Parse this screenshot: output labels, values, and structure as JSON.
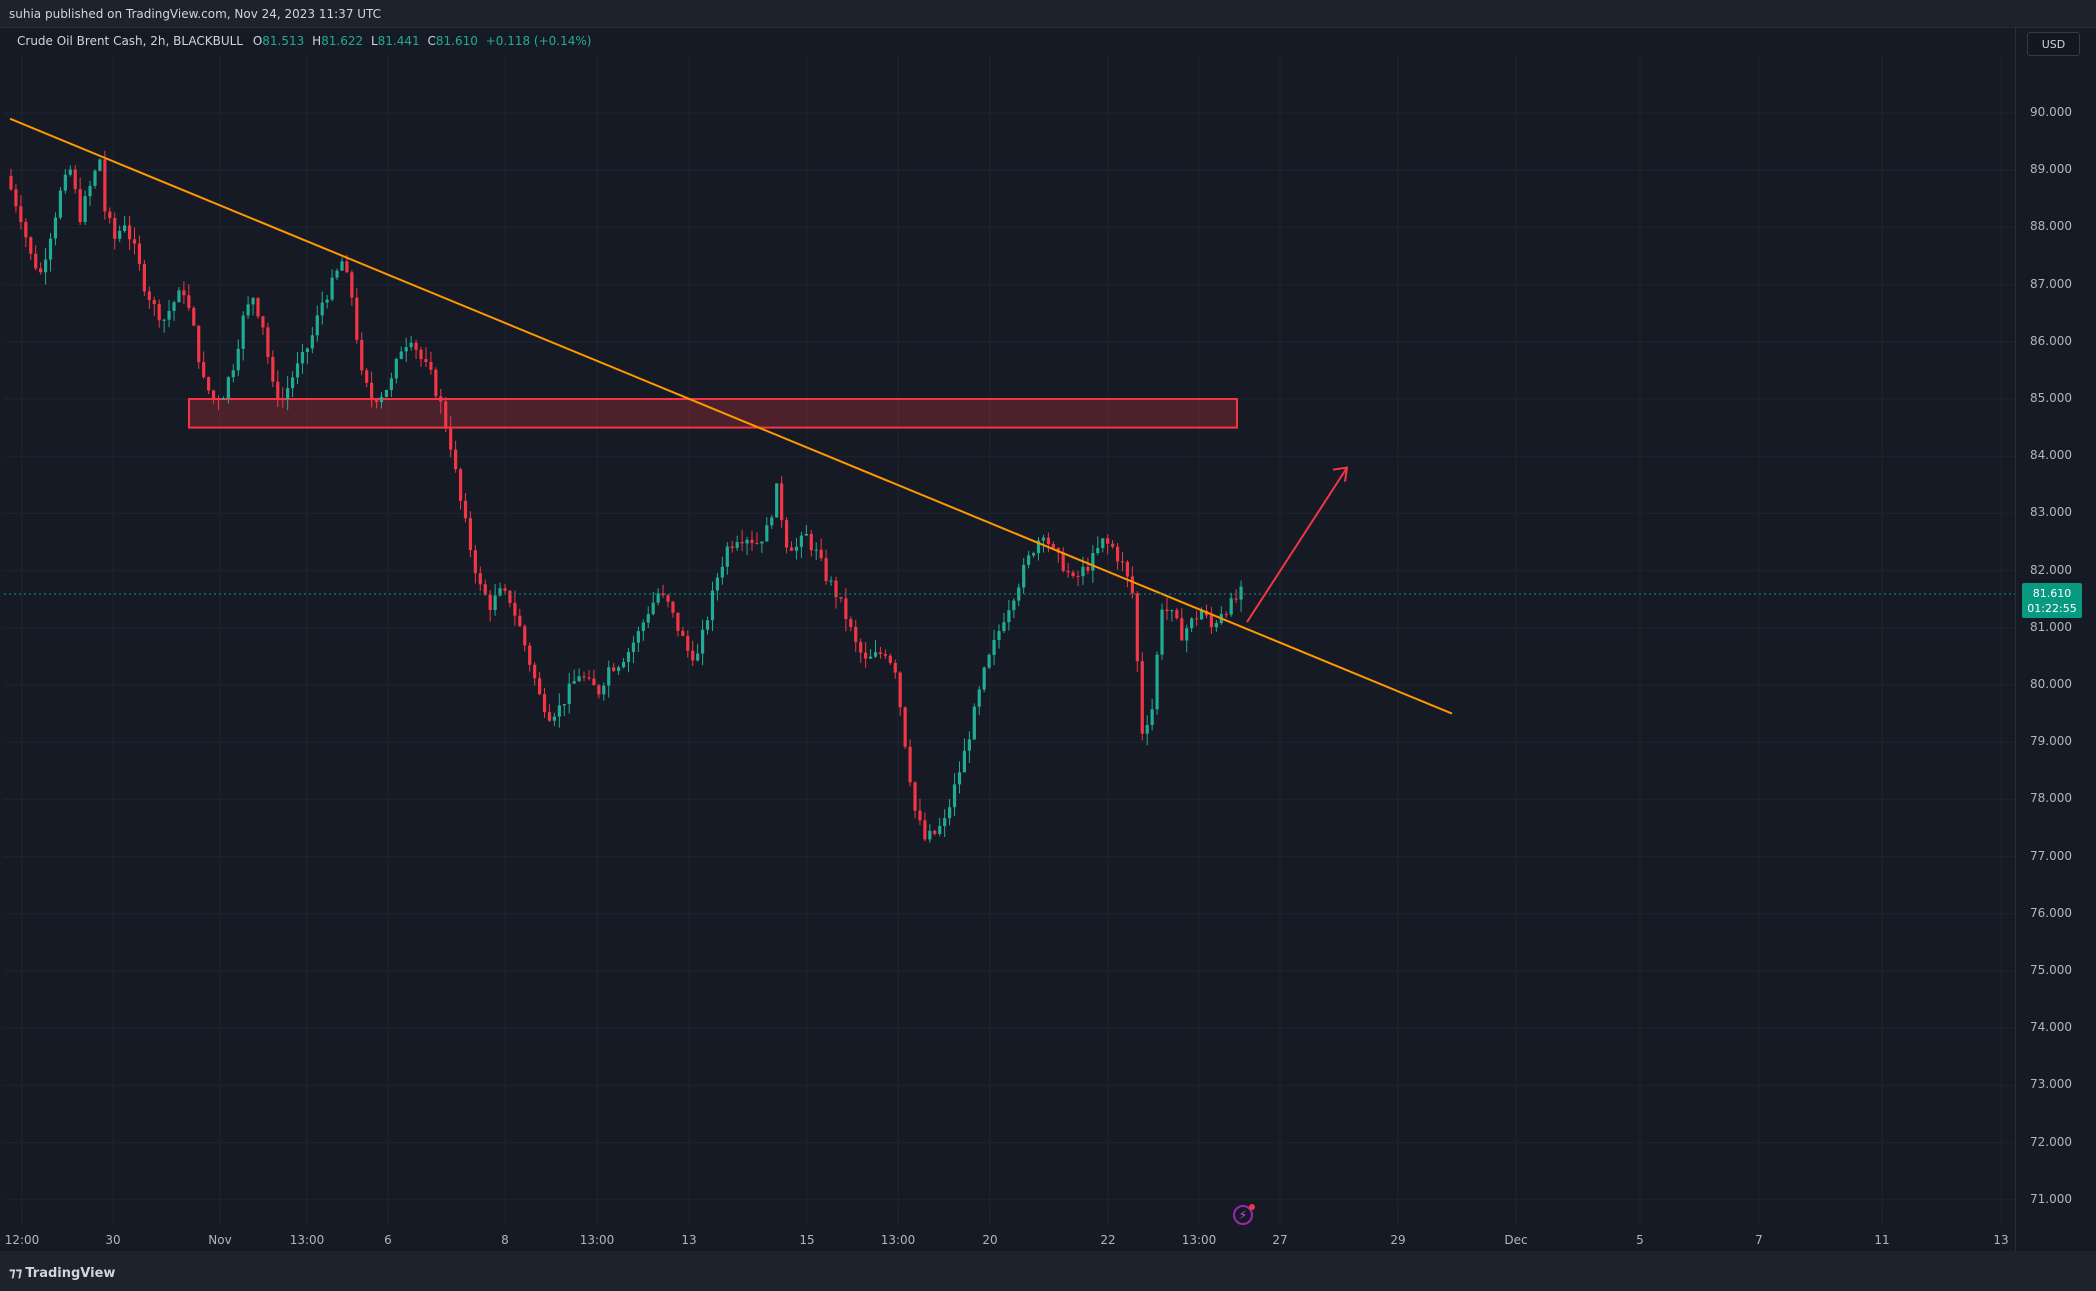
{
  "header": {
    "published": "suhia published on TradingView.com, Nov 24, 2023 11:37 UTC"
  },
  "legend": {
    "symbol": "Crude Oil Brent Cash, 2h, BLACKBULL",
    "o_label": "O",
    "o_val": "81.513",
    "h_label": "H",
    "h_val": "81.622",
    "l_label": "L",
    "l_val": "81.441",
    "c_label": "C",
    "c_val": "81.610",
    "change": "+0.118 (+0.14%)"
  },
  "currency": "USD",
  "price_axis": [
    "90.000",
    "89.000",
    "88.000",
    "87.000",
    "86.000",
    "85.000",
    "84.000",
    "83.000",
    "82.000",
    "81.000",
    "80.000",
    "79.000",
    "78.000",
    "77.000",
    "76.000",
    "75.000",
    "74.000",
    "73.000",
    "72.000",
    "71.000"
  ],
  "current_price": {
    "price": "81.610",
    "countdown": "01:22:55"
  },
  "time_axis": [
    "12:00",
    "30",
    "Nov",
    "13:00",
    "6",
    "8",
    "13:00",
    "13",
    "15",
    "13:00",
    "20",
    "22",
    "13:00",
    "27",
    "29",
    "Dec",
    "5",
    "7",
    "11",
    "13"
  ],
  "footer": {
    "brand": "TradingView"
  },
  "colors": {
    "up": "#22ab94",
    "down": "#f23645",
    "trendline": "#ff9800",
    "zone": "#f23645",
    "arrow": "#f23645"
  },
  "chart_data": {
    "type": "candlestick",
    "title": "Crude Oil Brent Cash, 2h, BLACKBULL",
    "ylim": [
      70.5,
      91.2
    ],
    "price_path": [
      [
        0,
        88.9
      ],
      [
        6,
        88.2
      ],
      [
        10,
        87.5
      ],
      [
        14,
        87.2
      ],
      [
        18,
        87.9
      ],
      [
        22,
        88.6
      ],
      [
        26,
        89.0
      ],
      [
        30,
        88.2
      ],
      [
        34,
        88.7
      ],
      [
        38,
        89.2
      ],
      [
        40,
        88.3
      ],
      [
        44,
        87.8
      ],
      [
        48,
        88.1
      ],
      [
        52,
        87.6
      ],
      [
        56,
        87.0
      ],
      [
        60,
        86.6
      ],
      [
        64,
        86.4
      ],
      [
        68,
        86.7
      ],
      [
        72,
        86.9
      ],
      [
        76,
        86.2
      ],
      [
        80,
        85.3
      ],
      [
        84,
        85.0
      ],
      [
        88,
        85.1
      ],
      [
        92,
        85.6
      ],
      [
        96,
        86.4
      ],
      [
        100,
        86.8
      ],
      [
        104,
        86.3
      ],
      [
        108,
        85.2
      ],
      [
        112,
        85.0
      ],
      [
        116,
        85.4
      ],
      [
        120,
        85.7
      ],
      [
        124,
        86.1
      ],
      [
        128,
        86.7
      ],
      [
        132,
        87.0
      ],
      [
        136,
        87.4
      ],
      [
        140,
        86.8
      ],
      [
        144,
        85.4
      ],
      [
        148,
        85.0
      ],
      [
        152,
        85.1
      ],
      [
        156,
        85.3
      ],
      [
        160,
        85.9
      ],
      [
        164,
        86.1
      ],
      [
        168,
        85.7
      ],
      [
        172,
        85.4
      ],
      [
        176,
        84.9
      ],
      [
        180,
        84.2
      ],
      [
        184,
        83.2
      ],
      [
        188,
        82.4
      ],
      [
        192,
        81.7
      ],
      [
        196,
        81.4
      ],
      [
        200,
        81.6
      ],
      [
        204,
        81.5
      ],
      [
        208,
        81.0
      ],
      [
        212,
        80.4
      ],
      [
        216,
        79.8
      ],
      [
        220,
        79.5
      ],
      [
        224,
        79.6
      ],
      [
        228,
        79.9
      ],
      [
        232,
        80.2
      ],
      [
        236,
        80.0
      ],
      [
        240,
        79.9
      ],
      [
        244,
        80.3
      ],
      [
        248,
        80.4
      ],
      [
        252,
        80.6
      ],
      [
        256,
        80.9
      ],
      [
        260,
        81.3
      ],
      [
        264,
        81.6
      ],
      [
        268,
        81.4
      ],
      [
        272,
        81.0
      ],
      [
        276,
        80.6
      ],
      [
        280,
        80.5
      ],
      [
        284,
        81.2
      ],
      [
        288,
        81.9
      ],
      [
        292,
        82.4
      ],
      [
        296,
        82.6
      ],
      [
        300,
        82.6
      ],
      [
        304,
        82.5
      ],
      [
        308,
        82.7
      ],
      [
        312,
        83.4
      ],
      [
        316,
        82.5
      ],
      [
        320,
        82.4
      ],
      [
        324,
        82.6
      ],
      [
        328,
        82.3
      ],
      [
        332,
        81.9
      ],
      [
        336,
        81.6
      ],
      [
        340,
        81.2
      ],
      [
        344,
        80.7
      ],
      [
        348,
        80.4
      ],
      [
        352,
        80.5
      ],
      [
        356,
        80.6
      ],
      [
        360,
        80.3
      ],
      [
        364,
        79.0
      ],
      [
        368,
        77.8
      ],
      [
        372,
        77.3
      ],
      [
        376,
        77.4
      ],
      [
        380,
        77.6
      ],
      [
        384,
        78.2
      ],
      [
        388,
        78.8
      ],
      [
        392,
        79.5
      ],
      [
        396,
        80.2
      ],
      [
        400,
        80.7
      ],
      [
        404,
        81.2
      ],
      [
        408,
        81.6
      ],
      [
        412,
        82.0
      ],
      [
        416,
        82.4
      ],
      [
        420,
        82.7
      ],
      [
        424,
        82.3
      ],
      [
        428,
        82.1
      ],
      [
        432,
        81.8
      ],
      [
        436,
        82.0
      ],
      [
        440,
        82.2
      ],
      [
        444,
        82.5
      ],
      [
        448,
        82.4
      ],
      [
        452,
        82.1
      ],
      [
        456,
        81.6
      ],
      [
        460,
        79.2
      ],
      [
        464,
        79.6
      ],
      [
        468,
        81.4
      ],
      [
        472,
        81.2
      ],
      [
        476,
        80.9
      ],
      [
        480,
        81.1
      ],
      [
        484,
        81.3
      ],
      [
        488,
        81.0
      ],
      [
        492,
        81.3
      ],
      [
        496,
        81.4
      ],
      [
        500,
        81.6
      ]
    ],
    "trendline": {
      "from": [
        "Oct 28",
        89.9
      ],
      "to": [
        "Nov 30",
        79.5
      ]
    },
    "resistance_zone": {
      "low": 84.5,
      "high": 85.0,
      "from": "Oct 31",
      "to": "Nov 24"
    },
    "projection_arrow": {
      "from": 81.1,
      "to": 83.8,
      "direction": "up"
    }
  }
}
